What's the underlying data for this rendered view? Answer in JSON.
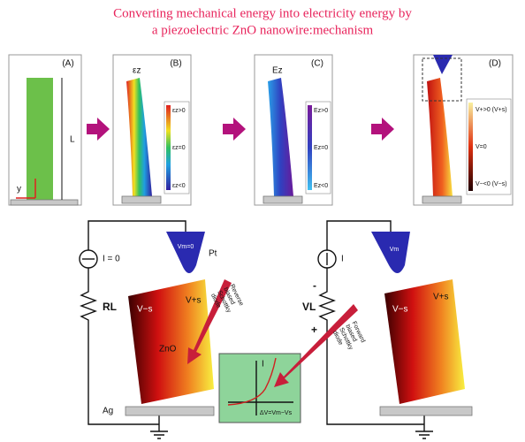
{
  "header": {
    "title": [
      "Converting mechanical energy into electricity energy by",
      "a piezoelectric ZnO nanowire:mechanism"
    ]
  },
  "panels": [
    {
      "label": "(A)",
      "texts": [
        "L",
        "y"
      ]
    },
    {
      "label": "(B)",
      "field": "εz",
      "legend": [
        "εz>0",
        "εz=0",
        "εz<0"
      ]
    },
    {
      "label": "(C)",
      "field": "Ez",
      "legend": [
        "Ez>0",
        "Ez=0",
        "Ez<0"
      ]
    },
    {
      "label": "(D)",
      "legend": [
        "V+>0 (V+s)",
        "V=0",
        "V−<0 (V−s)"
      ]
    }
  ],
  "left_circuit": {
    "meter": "I = 0",
    "tip": "Pt",
    "tip_potential": "Vm=0",
    "resistor": "RL",
    "rod_left": "V−s",
    "rod_right": "V+s",
    "material": "ZnO",
    "electrode": "Ag",
    "diode": [
      "Reverse",
      "biased",
      "Schottky",
      "diode"
    ]
  },
  "iv_plot": {
    "y_label": "I",
    "x_label": "ΔV=Vm−Vs"
  },
  "right_circuit": {
    "meter": "I",
    "tip_potential": "Vm",
    "resistor": "VL",
    "minus": "-",
    "plus": "+",
    "rod_left": "V−s",
    "rod_right": "V+s",
    "diode": [
      "Forward",
      "biased",
      "Schottky",
      "diode"
    ]
  }
}
